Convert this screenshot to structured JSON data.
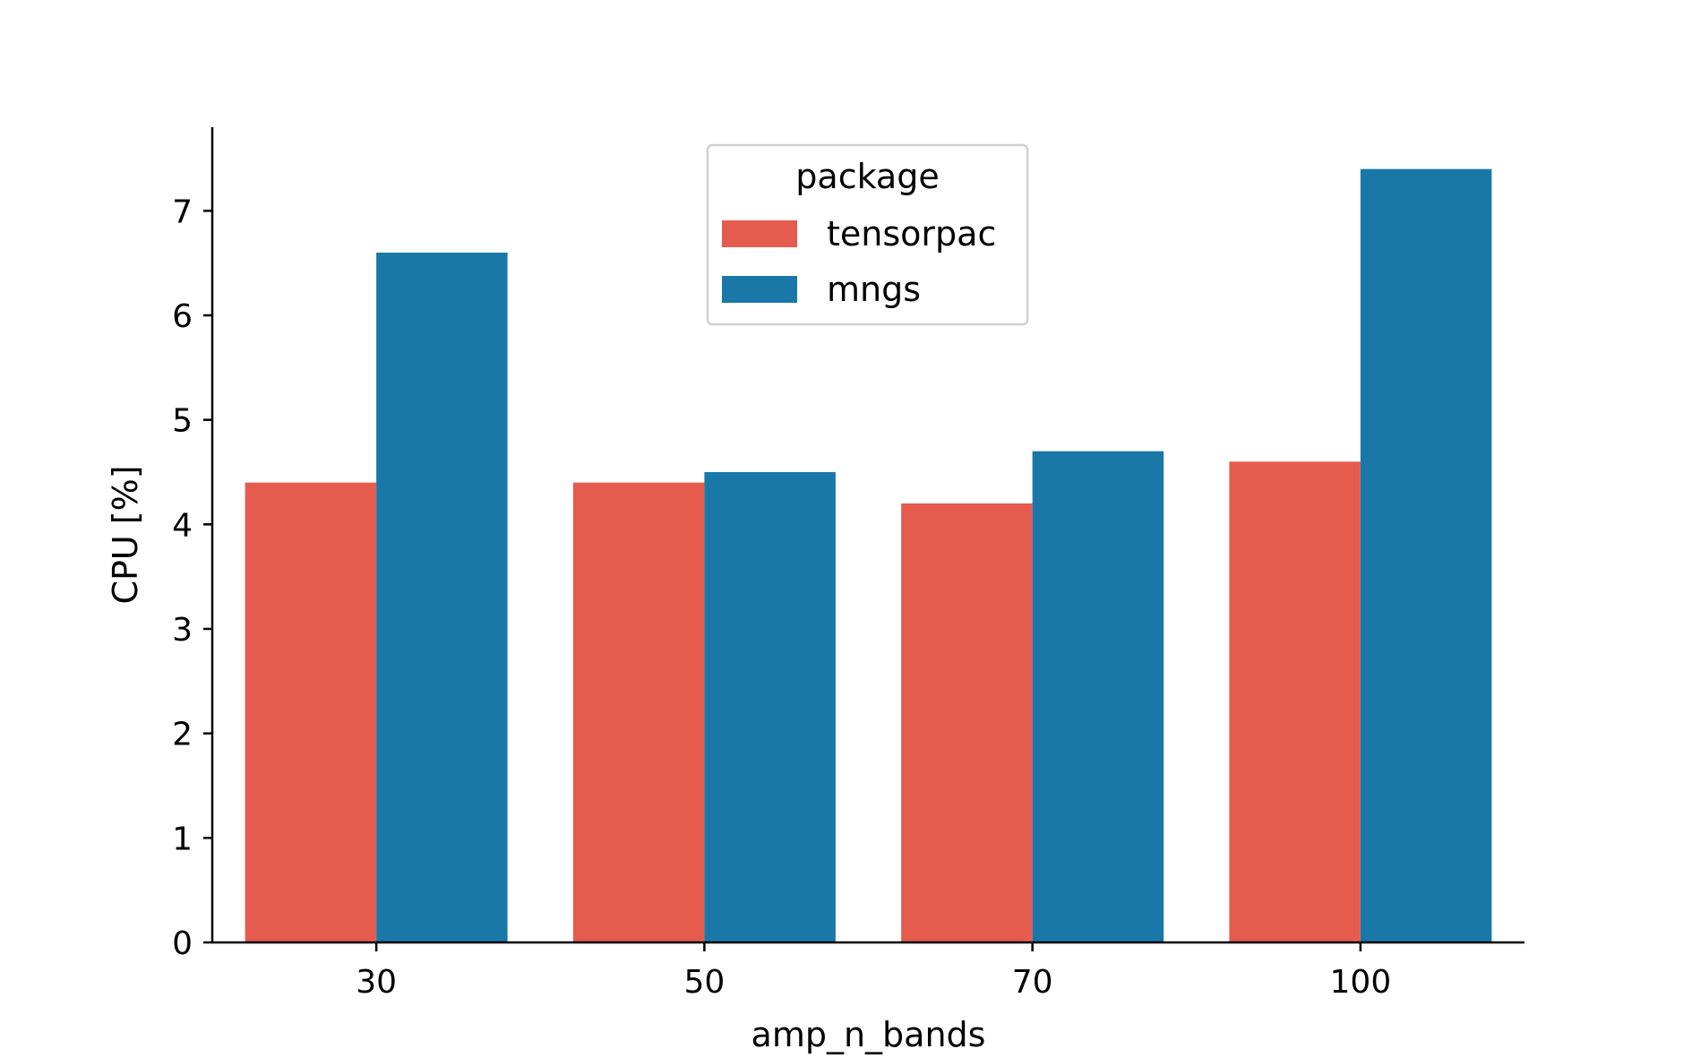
{
  "chart_data": {
    "type": "bar",
    "title": "",
    "xlabel": "amp_n_bands",
    "ylabel": "CPU [%]",
    "categories": [
      "30",
      "50",
      "70",
      "100"
    ],
    "series": [
      {
        "name": "tensorpac",
        "color": "#e55c4f",
        "values": [
          4.4,
          4.4,
          4.2,
          4.6
        ]
      },
      {
        "name": "mngs",
        "color": "#1a78a9",
        "values": [
          6.6,
          4.5,
          4.7,
          7.4
        ]
      }
    ],
    "ylim": [
      0,
      7.8
    ],
    "yticks": [
      "0",
      "1",
      "2",
      "3",
      "4",
      "5",
      "6",
      "7"
    ],
    "grid": false,
    "legend": {
      "title": "package",
      "placement": "top-center"
    }
  }
}
